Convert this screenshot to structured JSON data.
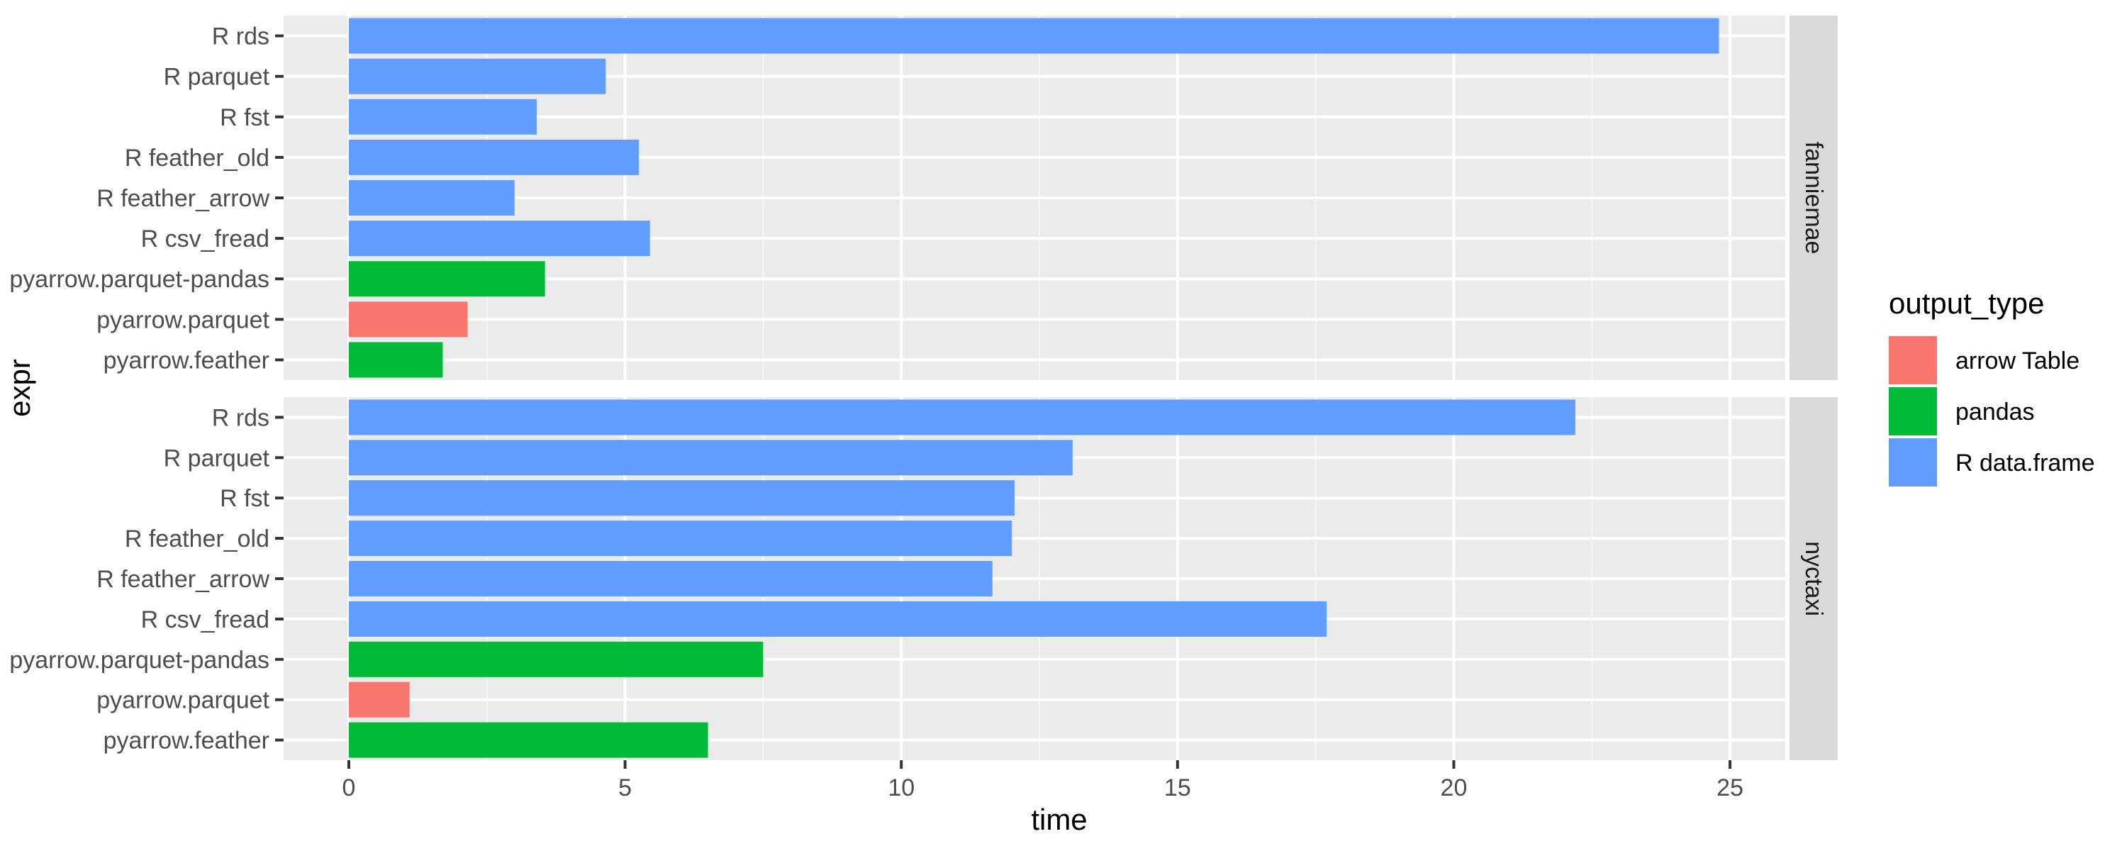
{
  "chart_data": {
    "type": "bar",
    "orientation": "horizontal",
    "xlabel": "time",
    "ylabel": "expr",
    "xlim": [
      0,
      26
    ],
    "x_ticks": [
      0,
      5,
      10,
      15,
      20,
      25
    ],
    "categories": [
      "R rds",
      "R parquet",
      "R fst",
      "R feather_old",
      "R feather_arrow",
      "R csv_fread",
      "pyarrow.parquet-pandas",
      "pyarrow.parquet",
      "pyarrow.feather"
    ],
    "legend": {
      "title": "output_type",
      "position": "right",
      "entries": [
        {
          "label": "arrow Table",
          "color": "#F8766D"
        },
        {
          "label": "pandas",
          "color": "#00BA38"
        },
        {
          "label": "R data.frame",
          "color": "#619CFF"
        }
      ]
    },
    "grid": true,
    "facets": [
      {
        "name": "fanniemae",
        "bars": [
          {
            "expr": "R rds",
            "time": 24.8,
            "output_type": "R data.frame"
          },
          {
            "expr": "R parquet",
            "time": 4.65,
            "output_type": "R data.frame"
          },
          {
            "expr": "R fst",
            "time": 3.4,
            "output_type": "R data.frame"
          },
          {
            "expr": "R feather_old",
            "time": 5.25,
            "output_type": "R data.frame"
          },
          {
            "expr": "R feather_arrow",
            "time": 3.0,
            "output_type": "R data.frame"
          },
          {
            "expr": "R csv_fread",
            "time": 5.45,
            "output_type": "R data.frame"
          },
          {
            "expr": "pyarrow.parquet-pandas",
            "time": 3.55,
            "output_type": "pandas"
          },
          {
            "expr": "pyarrow.parquet",
            "time": 2.15,
            "output_type": "arrow Table"
          },
          {
            "expr": "pyarrow.feather",
            "time": 1.7,
            "output_type": "pandas"
          }
        ]
      },
      {
        "name": "nyctaxi",
        "bars": [
          {
            "expr": "R rds",
            "time": 22.2,
            "output_type": "R data.frame"
          },
          {
            "expr": "R parquet",
            "time": 13.1,
            "output_type": "R data.frame"
          },
          {
            "expr": "R fst",
            "time": 12.05,
            "output_type": "R data.frame"
          },
          {
            "expr": "R feather_old",
            "time": 12.0,
            "output_type": "R data.frame"
          },
          {
            "expr": "R feather_arrow",
            "time": 11.65,
            "output_type": "R data.frame"
          },
          {
            "expr": "R csv_fread",
            "time": 17.7,
            "output_type": "R data.frame"
          },
          {
            "expr": "pyarrow.parquet-pandas",
            "time": 7.5,
            "output_type": "pandas"
          },
          {
            "expr": "pyarrow.parquet",
            "time": 1.1,
            "output_type": "arrow Table"
          },
          {
            "expr": "pyarrow.feather",
            "time": 6.5,
            "output_type": "pandas"
          }
        ]
      }
    ]
  }
}
